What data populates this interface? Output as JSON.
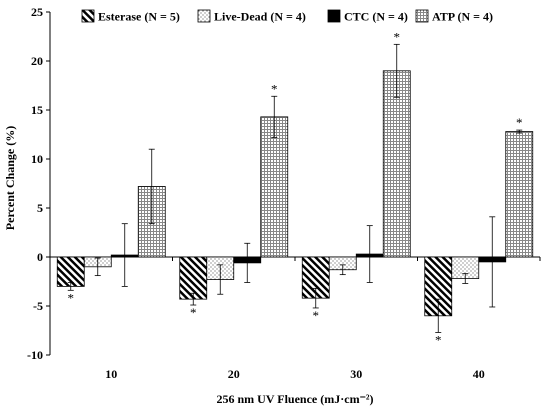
{
  "chart_data": {
    "type": "bar",
    "categories": [
      "10",
      "20",
      "30",
      "40"
    ],
    "series": [
      {
        "name": "Esterase (N = 5)",
        "pattern": "diagonal-hatch",
        "values": [
          -3.0,
          -4.3,
          -4.2,
          -6.0
        ],
        "errors": [
          0.4,
          0.6,
          1.0,
          1.7
        ],
        "significant": [
          true,
          true,
          true,
          true
        ]
      },
      {
        "name": "Live-Dead (N = 4)",
        "pattern": "dots",
        "values": [
          -1.0,
          -2.3,
          -1.3,
          -2.2
        ],
        "errors": [
          0.9,
          1.5,
          0.5,
          0.5
        ],
        "significant": [
          false,
          false,
          false,
          false
        ]
      },
      {
        "name": "CTC (N = 4)",
        "pattern": "solid-black",
        "values": [
          0.2,
          -0.6,
          0.3,
          -0.5
        ],
        "errors": [
          3.2,
          2.0,
          2.9,
          4.6
        ],
        "significant": [
          false,
          false,
          false,
          false
        ]
      },
      {
        "name": "ATP (N = 4)",
        "pattern": "grid",
        "values": [
          7.2,
          14.3,
          19.0,
          12.8
        ],
        "errors": [
          3.8,
          2.1,
          2.7,
          0.15
        ],
        "significant": [
          false,
          true,
          true,
          true
        ]
      }
    ],
    "significance_marker": "*",
    "xlabel": "256 nm UV Fluence (mJ·cm⁻²)",
    "ylabel": "Percent Change (%)",
    "ylim": [
      -10,
      25
    ],
    "yticks": [
      "-10",
      "-5",
      "0",
      "5",
      "10",
      "15",
      "20",
      "25"
    ],
    "grid": false,
    "legend_position": "top"
  }
}
